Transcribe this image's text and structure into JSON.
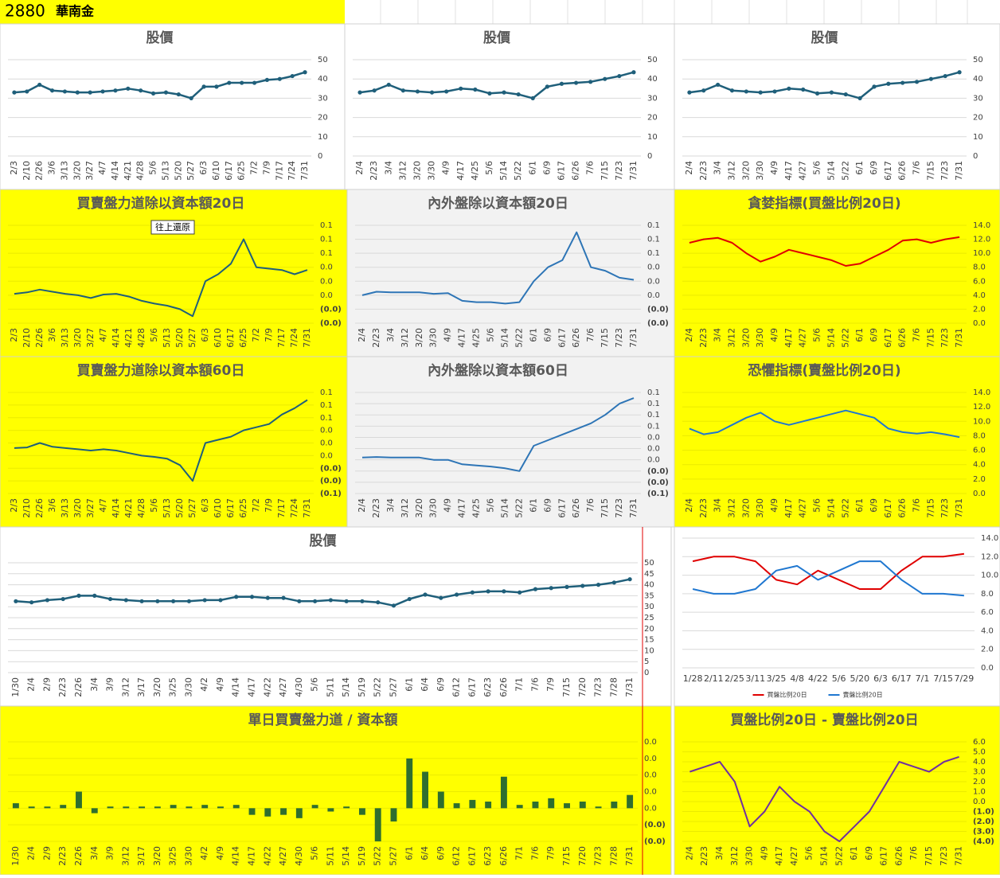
{
  "header": {
    "code": "2880",
    "name": "華南金"
  },
  "chart_data": [
    {
      "type": "line",
      "title": "股價",
      "background": "#ffffff",
      "color": "#1f5f7a",
      "markers": true,
      "grid": true,
      "categories": [
        "2/3",
        "2/10",
        "2/26",
        "3/6",
        "3/13",
        "3/20",
        "3/27",
        "4/7",
        "4/14",
        "4/21",
        "4/28",
        "5/6",
        "5/13",
        "5/20",
        "5/27",
        "6/3",
        "6/10",
        "6/17",
        "6/25",
        "7/2",
        "7/9",
        "7/17",
        "7/24",
        "7/31"
      ],
      "values": [
        33,
        33.5,
        37,
        34,
        33.5,
        33,
        33,
        33.5,
        34,
        35,
        34,
        32.5,
        33,
        32,
        30,
        36,
        36,
        38,
        38,
        38,
        39.5,
        40,
        41.5,
        43.5
      ],
      "ylim": [
        0,
        50
      ],
      "yticks": [
        0,
        10,
        20,
        30,
        40,
        50
      ]
    },
    {
      "type": "line",
      "title": "股價",
      "background": "#ffffff",
      "color": "#1f5f7a",
      "markers": true,
      "grid": true,
      "categories": [
        "2/4",
        "2/23",
        "3/4",
        "3/12",
        "3/20",
        "3/30",
        "4/9",
        "4/17",
        "4/25",
        "5/6",
        "5/14",
        "5/22",
        "6/1",
        "6/9",
        "6/17",
        "6/26",
        "7/6",
        "7/15",
        "7/23",
        "7/31"
      ],
      "values": [
        33,
        34,
        37,
        34,
        33.5,
        33,
        33.5,
        35,
        34.5,
        32.5,
        33,
        32,
        30,
        36,
        37.5,
        38,
        38.5,
        40,
        41.5,
        43.5
      ],
      "ylim": [
        0,
        50
      ],
      "yticks": [
        0,
        10,
        20,
        30,
        40,
        50
      ]
    },
    {
      "type": "line",
      "title": "股價",
      "background": "#ffffff",
      "color": "#1f5f7a",
      "markers": true,
      "grid": true,
      "categories": [
        "2/4",
        "2/23",
        "3/4",
        "3/12",
        "3/20",
        "3/30",
        "4/9",
        "4/17",
        "4/27",
        "5/6",
        "5/14",
        "5/22",
        "6/1",
        "6/9",
        "6/17",
        "6/26",
        "7/6",
        "7/15",
        "7/23",
        "7/31"
      ],
      "values": [
        33,
        34,
        37,
        34,
        33.5,
        33,
        33.5,
        35,
        34.5,
        32.5,
        33,
        32,
        30,
        36,
        37.5,
        38,
        38.5,
        40,
        41.5,
        43.5
      ],
      "ylim": [
        0,
        50
      ],
      "yticks": [
        0,
        10,
        20,
        30,
        40,
        50
      ]
    },
    {
      "type": "line",
      "title": "買賣盤力道除以資本額20日",
      "annotation": "往上還原",
      "background": "#ffff00",
      "color": "#1f5f7a",
      "negative_color": "#c00000",
      "grid": true,
      "categories": [
        "2/3",
        "2/10",
        "2/26",
        "3/6",
        "3/13",
        "3/20",
        "3/27",
        "4/7",
        "4/14",
        "4/21",
        "4/28",
        "5/6",
        "5/13",
        "5/20",
        "5/27",
        "6/3",
        "6/10",
        "6/17",
        "6/25",
        "7/2",
        "7/9",
        "7/17",
        "7/24",
        "7/31"
      ],
      "values": [
        0.002,
        0.004,
        0.008,
        0.005,
        0.002,
        0,
        -0.004,
        0.001,
        0.002,
        -0.002,
        -0.008,
        -0.012,
        -0.015,
        -0.02,
        -0.03,
        0.02,
        0.03,
        0.045,
        0.08,
        0.04,
        0.038,
        0.036,
        0.03,
        0.036
      ],
      "ylim": [
        -0.04,
        0.1
      ],
      "yticks": [
        {
          "value": -0.04,
          "label": "(0.0)"
        },
        {
          "value": -0.02,
          "label": "(0.0)"
        },
        {
          "value": 0,
          "label": "0.0"
        },
        {
          "value": 0.02,
          "label": "0.0"
        },
        {
          "value": 0.04,
          "label": "0.0"
        },
        {
          "value": 0.06,
          "label": "0.1"
        },
        {
          "value": 0.08,
          "label": "0.1"
        },
        {
          "value": 0.1,
          "label": "0.1"
        }
      ]
    },
    {
      "type": "line",
      "title": "內外盤除以資本額20日",
      "background": "#f2f2f2",
      "color": "#2e75b6",
      "negative_color": "#c00000",
      "grid": true,
      "categories": [
        "2/4",
        "2/23",
        "3/4",
        "3/12",
        "3/20",
        "3/30",
        "4/9",
        "4/17",
        "4/25",
        "5/6",
        "5/14",
        "5/22",
        "6/1",
        "6/9",
        "6/17",
        "6/26",
        "7/6",
        "7/15",
        "7/23",
        "7/31"
      ],
      "values": [
        0,
        0.005,
        0.004,
        0.004,
        0.004,
        0.002,
        0.003,
        -0.008,
        -0.01,
        -0.01,
        -0.012,
        -0.01,
        0.02,
        0.04,
        0.05,
        0.09,
        0.04,
        0.035,
        0.025,
        0.022
      ],
      "ylim": [
        -0.04,
        0.1
      ],
      "yticks": [
        {
          "value": -0.04,
          "label": "(0.0)"
        },
        {
          "value": -0.02,
          "label": "(0.0)"
        },
        {
          "value": 0,
          "label": "0.0"
        },
        {
          "value": 0.02,
          "label": "0.0"
        },
        {
          "value": 0.04,
          "label": "0.0"
        },
        {
          "value": 0.06,
          "label": "0.1"
        },
        {
          "value": 0.08,
          "label": "0.1"
        },
        {
          "value": 0.1,
          "label": "0.1"
        }
      ]
    },
    {
      "type": "line",
      "title": "貪婪指標(買盤比例20日)",
      "background": "#ffff00",
      "color": "#e00000",
      "grid": true,
      "categories": [
        "2/4",
        "2/23",
        "3/4",
        "3/12",
        "3/20",
        "3/30",
        "4/9",
        "4/17",
        "4/27",
        "5/6",
        "5/14",
        "5/22",
        "6/1",
        "6/9",
        "6/17",
        "6/26",
        "7/6",
        "7/15",
        "7/23",
        "7/31"
      ],
      "values": [
        11.5,
        12,
        12.2,
        11.5,
        10,
        8.8,
        9.5,
        10.5,
        10,
        9.5,
        9,
        8.2,
        8.5,
        9.5,
        10.5,
        11.8,
        12,
        11.5,
        12,
        12.3
      ],
      "ylim": [
        0,
        14
      ],
      "yticks": [
        {
          "value": 0,
          "label": "0.0"
        },
        {
          "value": 2,
          "label": "2.0"
        },
        {
          "value": 4,
          "label": "4.0"
        },
        {
          "value": 6,
          "label": "6.0"
        },
        {
          "value": 8,
          "label": "8.0"
        },
        {
          "value": 10,
          "label": "10.0"
        },
        {
          "value": 12,
          "label": "12.0"
        },
        {
          "value": 14,
          "label": "14.0"
        }
      ]
    },
    {
      "type": "line",
      "title": "買賣盤力道除以資本額60日",
      "background": "#ffff00",
      "color": "#1f5f7a",
      "negative_color": "#c00000",
      "grid": true,
      "categories": [
        "2/3",
        "2/10",
        "2/26",
        "3/6",
        "3/13",
        "3/20",
        "3/27",
        "4/7",
        "4/14",
        "4/21",
        "4/28",
        "5/6",
        "5/13",
        "5/20",
        "5/27",
        "6/3",
        "6/10",
        "6/17",
        "6/25",
        "7/2",
        "7/9",
        "7/17",
        "7/24",
        "7/31"
      ],
      "values": [
        0.012,
        0.013,
        0.02,
        0.014,
        0.012,
        0.01,
        0.008,
        0.01,
        0.008,
        0.004,
        0,
        -0.002,
        -0.005,
        -0.015,
        -0.04,
        0.02,
        0.025,
        0.03,
        0.04,
        0.045,
        0.05,
        0.065,
        0.075,
        0.088
      ],
      "ylim": [
        -0.06,
        0.1
      ],
      "yticks": [
        {
          "value": -0.06,
          "label": "(0.1)"
        },
        {
          "value": -0.04,
          "label": "(0.0)"
        },
        {
          "value": -0.02,
          "label": "(0.0)"
        },
        {
          "value": 0,
          "label": "0.0"
        },
        {
          "value": 0.02,
          "label": "0.0"
        },
        {
          "value": 0.04,
          "label": "0.0"
        },
        {
          "value": 0.06,
          "label": "0.1"
        },
        {
          "value": 0.08,
          "label": "0.1"
        },
        {
          "value": 0.1,
          "label": "0.1"
        }
      ]
    },
    {
      "type": "line",
      "title": "內外盤除以資本額60日",
      "background": "#f2f2f2",
      "color": "#2e75b6",
      "negative_color": "#c00000",
      "grid": true,
      "categories": [
        "2/4",
        "2/23",
        "3/4",
        "3/12",
        "3/20",
        "3/30",
        "4/9",
        "4/17",
        "4/25",
        "5/6",
        "5/14",
        "5/22",
        "6/1",
        "6/9",
        "6/17",
        "6/26",
        "7/6",
        "7/15",
        "7/23",
        "7/31"
      ],
      "values": [
        0.004,
        0.005,
        0.004,
        0.004,
        0.004,
        0,
        0,
        -0.008,
        -0.01,
        -0.012,
        -0.015,
        -0.02,
        0.025,
        0.035,
        0.045,
        0.055,
        0.065,
        0.08,
        0.1,
        0.11
      ],
      "ylim": [
        -0.06,
        0.12
      ],
      "yticks": [
        {
          "value": -0.06,
          "label": "(0.1)"
        },
        {
          "value": -0.04,
          "label": "(0.0)"
        },
        {
          "value": -0.02,
          "label": "(0.0)"
        },
        {
          "value": 0,
          "label": "0.0"
        },
        {
          "value": 0.02,
          "label": "0.0"
        },
        {
          "value": 0.04,
          "label": "0.0"
        },
        {
          "value": 0.06,
          "label": "0.1"
        },
        {
          "value": 0.08,
          "label": "0.1"
        },
        {
          "value": 0.1,
          "label": "0.1"
        },
        {
          "value": 0.12,
          "label": "0.1"
        }
      ]
    },
    {
      "type": "line",
      "title": "恐懼指標(賣盤比例20日)",
      "background": "#ffff00",
      "color": "#1f77d0",
      "grid": true,
      "categories": [
        "2/4",
        "2/23",
        "3/4",
        "3/12",
        "3/20",
        "3/30",
        "4/9",
        "4/17",
        "4/27",
        "5/6",
        "5/14",
        "5/22",
        "6/1",
        "6/9",
        "6/17",
        "6/26",
        "7/6",
        "7/15",
        "7/23",
        "7/31"
      ],
      "values": [
        9,
        8.2,
        8.5,
        9.5,
        10.5,
        11.2,
        10,
        9.5,
        10,
        10.5,
        11,
        11.5,
        11,
        10.5,
        9,
        8.5,
        8.3,
        8.5,
        8.2,
        7.8
      ],
      "ylim": [
        0,
        14
      ],
      "yticks": [
        {
          "value": 0,
          "label": "0.0"
        },
        {
          "value": 2,
          "label": "2.0"
        },
        {
          "value": 4,
          "label": "4.0"
        },
        {
          "value": 6,
          "label": "6.0"
        },
        {
          "value": 8,
          "label": "8.0"
        },
        {
          "value": 10,
          "label": "10.0"
        },
        {
          "value": 12,
          "label": "12.0"
        },
        {
          "value": 14,
          "label": "14.0"
        }
      ]
    },
    {
      "type": "line",
      "title": "股價",
      "background": "#ffffff",
      "color": "#1f5f7a",
      "markers": true,
      "grid": true,
      "categories": [
        "1/30",
        "2/4",
        "2/9",
        "2/23",
        "2/26",
        "3/4",
        "3/9",
        "3/12",
        "3/17",
        "3/20",
        "3/25",
        "3/30",
        "4/2",
        "4/9",
        "4/14",
        "4/17",
        "4/22",
        "4/27",
        "4/30",
        "5/6",
        "5/11",
        "5/14",
        "5/19",
        "5/22",
        "5/27",
        "6/1",
        "6/4",
        "6/9",
        "6/12",
        "6/17",
        "6/23",
        "6/26",
        "7/1",
        "7/6",
        "7/9",
        "7/15",
        "7/20",
        "7/23",
        "7/28",
        "7/31"
      ],
      "values": [
        32.5,
        32,
        33,
        33.5,
        35,
        35,
        33.5,
        33,
        32.5,
        32.5,
        32.5,
        32.5,
        33,
        33,
        34.5,
        34.5,
        34,
        34,
        32.5,
        32.5,
        33,
        32.5,
        32.5,
        32,
        30.5,
        33.5,
        35.5,
        34,
        35.5,
        36.5,
        37,
        37,
        36.5,
        38,
        38.5,
        39,
        39.5,
        40,
        41,
        42.5
      ],
      "ylim": [
        0,
        50
      ],
      "yticks": [
        0,
        5,
        10,
        15,
        20,
        25,
        30,
        35,
        40,
        45,
        50
      ]
    },
    {
      "type": "line",
      "legend": "bottom",
      "background": "#ffffff",
      "grid": true,
      "categories": [
        "1/28",
        "2/11",
        "2/25",
        "3/11",
        "3/25",
        "4/8",
        "4/22",
        "5/6",
        "5/20",
        "6/3",
        "6/17",
        "7/1",
        "7/15",
        "7/29"
      ],
      "series": [
        {
          "name": "買盤比例20日",
          "color": "#e00000",
          "values": [
            11.5,
            12,
            12,
            11.5,
            9.5,
            9,
            10.5,
            9.5,
            8.5,
            8.5,
            10.5,
            12,
            12,
            12.3
          ]
        },
        {
          "name": "賣盤比例20日",
          "color": "#1f77d0",
          "values": [
            8.5,
            8,
            8,
            8.5,
            10.5,
            11,
            9.5,
            10.5,
            11.5,
            11.5,
            9.5,
            8,
            8,
            7.8
          ]
        }
      ],
      "ylim": [
        0,
        14
      ],
      "yticks": [
        {
          "value": 0,
          "label": "0.0"
        },
        {
          "value": 2,
          "label": "2.0"
        },
        {
          "value": 4,
          "label": "4.0"
        },
        {
          "value": 6,
          "label": "6.0"
        },
        {
          "value": 8,
          "label": "8.0"
        },
        {
          "value": 10,
          "label": "10.0"
        },
        {
          "value": 12,
          "label": "12.0"
        },
        {
          "value": 14,
          "label": "14.0"
        }
      ]
    },
    {
      "type": "bar",
      "title": "單日買賣盤力道 / 資本額",
      "background": "#ffff00",
      "color": "#2f6e2f",
      "negative_color": "#c00000",
      "grid": true,
      "categories": [
        "1/30",
        "2/4",
        "2/9",
        "2/23",
        "2/26",
        "3/4",
        "3/9",
        "3/12",
        "3/17",
        "3/20",
        "3/25",
        "3/30",
        "4/2",
        "4/9",
        "4/14",
        "4/17",
        "4/22",
        "4/27",
        "4/30",
        "5/6",
        "5/11",
        "5/14",
        "5/19",
        "5/22",
        "5/27",
        "6/1",
        "6/4",
        "6/9",
        "6/12",
        "6/17",
        "6/23",
        "6/26",
        "7/1",
        "7/6",
        "7/9",
        "7/15",
        "7/20",
        "7/23",
        "7/28",
        "7/31"
      ],
      "values": [
        0.003,
        0.001,
        0.001,
        0.002,
        0.01,
        -0.003,
        0.001,
        0.001,
        0.001,
        0.001,
        0.002,
        0.001,
        0.002,
        0.001,
        0.002,
        -0.004,
        -0.005,
        -0.004,
        -0.006,
        0.002,
        -0.002,
        0.001,
        -0.004,
        -0.02,
        -0.008,
        0.03,
        0.022,
        0.01,
        0.003,
        0.005,
        0.004,
        0.019,
        0.002,
        0.004,
        0.006,
        0.003,
        0.004,
        0.001,
        0.004,
        0.008
      ],
      "ylim": [
        -0.02,
        0.04
      ],
      "yticks": [
        {
          "value": -0.02,
          "label": "(0.0)"
        },
        {
          "value": -0.01,
          "label": "(0.0)"
        },
        {
          "value": 0,
          "label": "0.0"
        },
        {
          "value": 0.01,
          "label": "0.0"
        },
        {
          "value": 0.02,
          "label": "0.0"
        },
        {
          "value": 0.03,
          "label": "0.0"
        },
        {
          "value": 0.04,
          "label": "0.0"
        }
      ]
    },
    {
      "type": "line",
      "title": "買盤比例20日 - 賣盤比例20日",
      "background": "#ffff00",
      "color": "#7030a0",
      "negative_color": "#c00000",
      "grid": true,
      "categories": [
        "2/4",
        "2/23",
        "3/4",
        "3/12",
        "3/30",
        "4/9",
        "4/17",
        "4/27",
        "5/6",
        "5/14",
        "5/22",
        "6/1",
        "6/9",
        "6/17",
        "6/26",
        "7/6",
        "7/15",
        "7/23",
        "7/31"
      ],
      "values": [
        3,
        3.5,
        4,
        2,
        -2.5,
        -1,
        1.5,
        0,
        -1,
        -3,
        -4,
        -2.5,
        -1,
        1.5,
        4,
        3.5,
        3,
        4,
        4.5
      ],
      "ylim": [
        -4,
        6
      ],
      "yticks": [
        {
          "value": -4,
          "label": "(4.0)"
        },
        {
          "value": -3,
          "label": "(3.0)"
        },
        {
          "value": -2,
          "label": "(2.0)"
        },
        {
          "value": -1,
          "label": "(1.0)"
        },
        {
          "value": 0,
          "label": "0.0"
        },
        {
          "value": 1,
          "label": "1.0"
        },
        {
          "value": 2,
          "label": "2.0"
        },
        {
          "value": 3,
          "label": "3.0"
        },
        {
          "value": 4,
          "label": "4.0"
        },
        {
          "value": 5,
          "label": "5.0"
        },
        {
          "value": 6,
          "label": "6.0"
        }
      ]
    }
  ]
}
